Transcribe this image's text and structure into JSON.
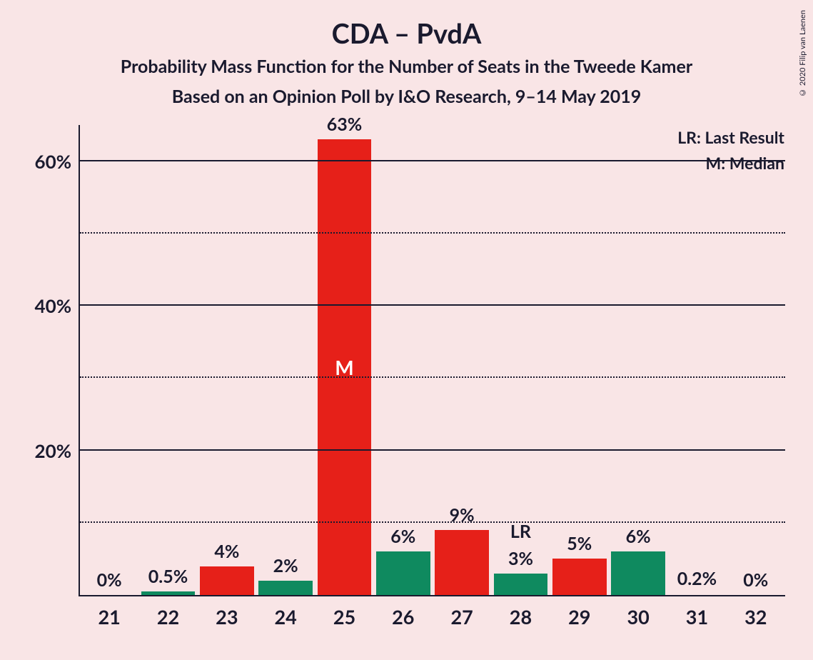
{
  "title": "CDA – PvdA",
  "subtitle1": "Probability Mass Function for the Number of Seats in the Tweede Kamer",
  "subtitle2": "Based on an Opinion Poll by I&O Research, 9–14 May 2019",
  "legend": {
    "lr": "LR: Last Result",
    "m": "M: Median"
  },
  "copyright": "© 2020 Filip van Laenen",
  "chart": {
    "type": "bar",
    "background_color": "#f9e5e6",
    "axis_color": "#1a1a2e",
    "text_color": "#1a1a2e",
    "colors": {
      "red": "#e62019",
      "green": "#0f8a5f"
    },
    "ylim": [
      0,
      65
    ],
    "y_major_ticks": [
      20,
      40,
      60
    ],
    "y_minor_ticks": [
      10,
      30,
      50
    ],
    "y_tick_labels": [
      "20%",
      "40%",
      "60%"
    ],
    "title_fontsize": 38,
    "subtitle_fontsize": 25,
    "tick_fontsize": 26,
    "barlabel_fontsize": 25,
    "bar_width_ratio": 0.92,
    "categories": [
      "21",
      "22",
      "23",
      "24",
      "25",
      "26",
      "27",
      "28",
      "29",
      "30",
      "31",
      "32"
    ],
    "bars": [
      {
        "value": 0,
        "label": "0%",
        "color": "hidden",
        "annotation": null
      },
      {
        "value": 0.5,
        "label": "0.5%",
        "color": "green",
        "annotation": null
      },
      {
        "value": 4,
        "label": "4%",
        "color": "red",
        "annotation": null
      },
      {
        "value": 2,
        "label": "2%",
        "color": "green",
        "annotation": null
      },
      {
        "value": 63,
        "label": "63%",
        "color": "red",
        "annotation": "M"
      },
      {
        "value": 6,
        "label": "6%",
        "color": "green",
        "annotation": null
      },
      {
        "value": 9,
        "label": "9%",
        "color": "red",
        "annotation": null
      },
      {
        "value": 3,
        "label": "3%",
        "color": "green",
        "annotation": "LR"
      },
      {
        "value": 5,
        "label": "5%",
        "color": "red",
        "annotation": null
      },
      {
        "value": 6,
        "label": "6%",
        "color": "green",
        "annotation": null
      },
      {
        "value": 0.2,
        "label": "0.2%",
        "color": "hidden",
        "annotation": null
      },
      {
        "value": 0,
        "label": "0%",
        "color": "hidden",
        "annotation": null
      }
    ]
  }
}
